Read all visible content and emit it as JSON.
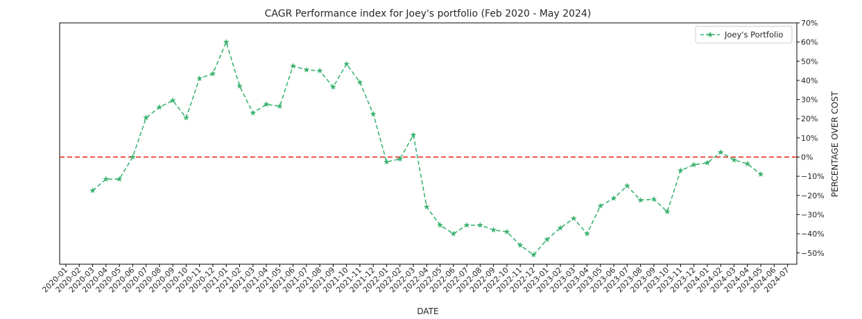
{
  "chart_data": {
    "type": "line",
    "title": "CAGR Performance index for Joey's portfolio (Feb 2020 - May 2024)",
    "xlabel": "DATE",
    "ylabel": "PERCENTAGE OVER COST",
    "ylim": [
      -55,
      70
    ],
    "y_ticks": [
      -50,
      -40,
      -30,
      -20,
      -10,
      0,
      10,
      20,
      30,
      40,
      50,
      60,
      70
    ],
    "y_tick_labels": [
      "−50%",
      "−40%",
      "−30%",
      "−20%",
      "−10%",
      "0%",
      "10%",
      "20%",
      "30%",
      "40%",
      "50%",
      "60%",
      "70%"
    ],
    "y_axis_side": "right",
    "grid": false,
    "legend_position": "upper right",
    "x_tick_labels": [
      "2020-01",
      "2020-02",
      "2020-03",
      "2020-04",
      "2020-05",
      "2020-06",
      "2020-07",
      "2020-08",
      "2020-09",
      "2020-10",
      "2020-11",
      "2020-12",
      "2021-01",
      "2021-02",
      "2021-03",
      "2021-04",
      "2021-05",
      "2021-06",
      "2021-07",
      "2021-08",
      "2021-09",
      "2021-10",
      "2021-11",
      "2021-12",
      "2022-01",
      "2022-02",
      "2022-03",
      "2022-04",
      "2022-05",
      "2022-06",
      "2022-07",
      "2022-08",
      "2022-09",
      "2022-10",
      "2022-11",
      "2022-12",
      "2023-01",
      "2023-02",
      "2023-03",
      "2023-04",
      "2023-05",
      "2023-06",
      "2023-07",
      "2023-08",
      "2023-09",
      "2023-10",
      "2023-11",
      "2023-12",
      "2024-01",
      "2024-02",
      "2024-03",
      "2024-04",
      "2024-05",
      "2024-06",
      "2024-07"
    ],
    "reference_line": {
      "y": 0,
      "color": "#e8352e",
      "style": "dashed"
    },
    "series": [
      {
        "name": "Joey's Portfolio",
        "color": "#3cb371",
        "line_style": "dashed",
        "marker": "star",
        "x": [
          "2020-03",
          "2020-04",
          "2020-05",
          "2020-06",
          "2020-07",
          "2020-08",
          "2020-09",
          "2020-10",
          "2020-11",
          "2020-12",
          "2021-01",
          "2021-02",
          "2021-03",
          "2021-04",
          "2021-05",
          "2021-06",
          "2021-07",
          "2021-08",
          "2021-09",
          "2021-10",
          "2021-11",
          "2021-12",
          "2022-01",
          "2022-02",
          "2022-03",
          "2022-04",
          "2022-05",
          "2022-06",
          "2022-07",
          "2022-08",
          "2022-09",
          "2022-10",
          "2022-11",
          "2022-12",
          "2023-01",
          "2023-02",
          "2023-03",
          "2023-04",
          "2023-05",
          "2023-06",
          "2023-07",
          "2023-08",
          "2023-09",
          "2023-10",
          "2023-11",
          "2023-12",
          "2024-01",
          "2024-02",
          "2024-03",
          "2024-04",
          "2024-05"
        ],
        "values": [
          -17.5,
          -11.5,
          -11.5,
          0,
          20.5,
          26,
          29.5,
          20.5,
          41,
          43.5,
          60,
          37,
          23,
          27.5,
          26.5,
          47.5,
          45.5,
          45,
          36.5,
          48.5,
          39,
          22.5,
          -2.5,
          -1,
          11.5,
          -26,
          -35.5,
          -40,
          -35.5,
          -35.5,
          -38,
          -39,
          -46,
          -51,
          -43,
          -37,
          -32,
          -40,
          -25.5,
          -21.5,
          -15,
          -22.5,
          -22,
          -28.5,
          -7,
          -4,
          -3,
          2.5,
          -1.5,
          -3.5,
          -9
        ]
      }
    ]
  }
}
